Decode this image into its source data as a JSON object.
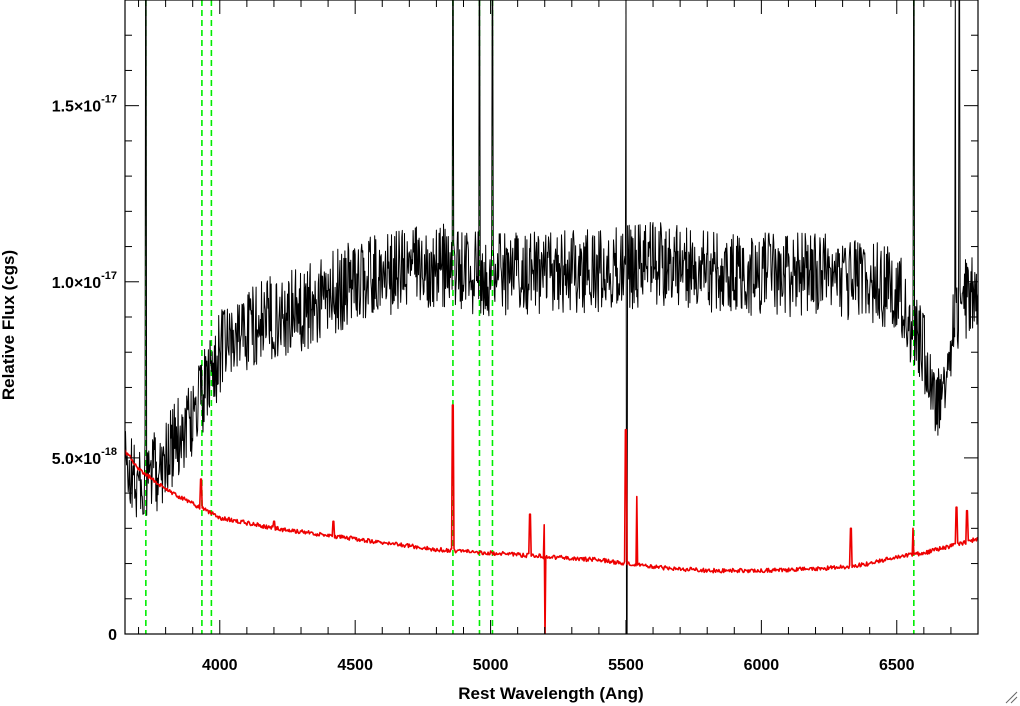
{
  "chart_data": {
    "type": "line",
    "title": "",
    "xlabel": "Rest Wavelength (Ang)",
    "ylabel": "Relative Flux (cgs)",
    "xlim": [
      3650,
      6800
    ],
    "ylim": [
      0,
      1.8e-17
    ],
    "x_ticks": [
      {
        "value": 4000,
        "label": "4000"
      },
      {
        "value": 4500,
        "label": "4500"
      },
      {
        "value": 5000,
        "label": "5000"
      },
      {
        "value": 5500,
        "label": "5500"
      },
      {
        "value": 6000,
        "label": "6000"
      },
      {
        "value": 6500,
        "label": "6500"
      }
    ],
    "y_ticks": [
      {
        "value": 0,
        "mant": "0",
        "exp": ""
      },
      {
        "value": 5e-18,
        "mant": "5.0×10",
        "exp": "-18"
      },
      {
        "value": 1e-17,
        "mant": "1.0×10",
        "exp": "-17"
      },
      {
        "value": 1.5e-17,
        "mant": "1.5×10",
        "exp": "-17"
      }
    ],
    "grid": false,
    "reference_lines": {
      "color": "#00ee00",
      "style": "dashed",
      "x": [
        3727,
        3934,
        3969,
        4861,
        4959,
        5007,
        6563
      ]
    },
    "series": [
      {
        "role": "spectrum",
        "color": "#000000",
        "profile": {
          "x": [
            3650,
            3700,
            3750,
            3800,
            3850,
            3900,
            3950,
            4000,
            4100,
            4200,
            4300,
            4400,
            4500,
            4600,
            4700,
            4800,
            4900,
            5000,
            5100,
            5200,
            5300,
            5400,
            5500,
            5600,
            5700,
            5800,
            5900,
            6000,
            6100,
            6200,
            6300,
            6400,
            6500,
            6600,
            6650,
            6700,
            6750,
            6800
          ],
          "y": [
            4.8e-18,
            4.2e-18,
            4.5e-18,
            5e-18,
            5.6e-18,
            6.2e-18,
            7e-18,
            8e-18,
            8.7e-18,
            9e-18,
            9.2e-18,
            9.6e-18,
            1e-17,
            1.02e-17,
            1.04e-17,
            1.05e-17,
            1.03e-17,
            1.02e-17,
            1.03e-17,
            1.02e-17,
            1.03e-17,
            1.03e-17,
            1.04e-17,
            1.05e-17,
            1.05e-17,
            1.03e-17,
            1.02e-17,
            1.02e-17,
            1.02e-17,
            1.02e-17,
            1.01e-17,
            1e-17,
            9.8e-18,
            8e-18,
            6.5e-18,
            8.5e-18,
            9.5e-18,
            1e-17
          ]
        },
        "noise_level": 1.2e-18,
        "sampling_step": 2,
        "features": [
          {
            "x": 3727,
            "peak": 2e-17
          },
          {
            "x": 4861,
            "peak": 2e-17
          },
          {
            "x": 4959,
            "peak": 2e-17
          },
          {
            "x": 5007,
            "peak": 2e-17
          },
          {
            "x": 5500,
            "peak": 2e-17
          },
          {
            "x": 5503,
            "peak": 0
          },
          {
            "x": 6563,
            "peak": 2e-17
          },
          {
            "x": 6716,
            "peak": 2e-17
          },
          {
            "x": 6731,
            "peak": 2e-17
          }
        ]
      },
      {
        "role": "error spectrum",
        "color": "#ee0000",
        "profile": {
          "x": [
            3650,
            3700,
            3800,
            3900,
            4000,
            4200,
            4400,
            4600,
            4800,
            5000,
            5200,
            5400,
            5600,
            5800,
            6000,
            6200,
            6300,
            6400,
            6500,
            6600,
            6700,
            6800
          ],
          "y": [
            5.2e-18,
            4.7e-18,
            4.1e-18,
            3.7e-18,
            3.3e-18,
            3e-18,
            2.8e-18,
            2.6e-18,
            2.4e-18,
            2.3e-18,
            2.2e-18,
            2.1e-18,
            1.9e-18,
            1.8e-18,
            1.8e-18,
            1.85e-18,
            1.9e-18,
            2e-18,
            2.2e-18,
            2.3e-18,
            2.5e-18,
            2.7e-18
          ]
        },
        "noise_level": 6e-20,
        "sampling_step": 3,
        "features": [
          {
            "x": 3930,
            "peak": 4.4e-18
          },
          {
            "x": 4200,
            "peak": 3.2e-18
          },
          {
            "x": 4420,
            "peak": 3.2e-18
          },
          {
            "x": 4861,
            "peak": 6.5e-18
          },
          {
            "x": 5145,
            "peak": 3.4e-18
          },
          {
            "x": 5200,
            "peak": 3.1e-18
          },
          {
            "x": 5201,
            "peak": -5e-19
          },
          {
            "x": 5500,
            "peak": 5.8e-18
          },
          {
            "x": 5540,
            "peak": 3.9e-18
          },
          {
            "x": 6330,
            "peak": 3e-18
          },
          {
            "x": 6560,
            "peak": 3e-18
          },
          {
            "x": 6720,
            "peak": 3.6e-18
          },
          {
            "x": 6760,
            "peak": 3.5e-18
          }
        ]
      }
    ]
  }
}
